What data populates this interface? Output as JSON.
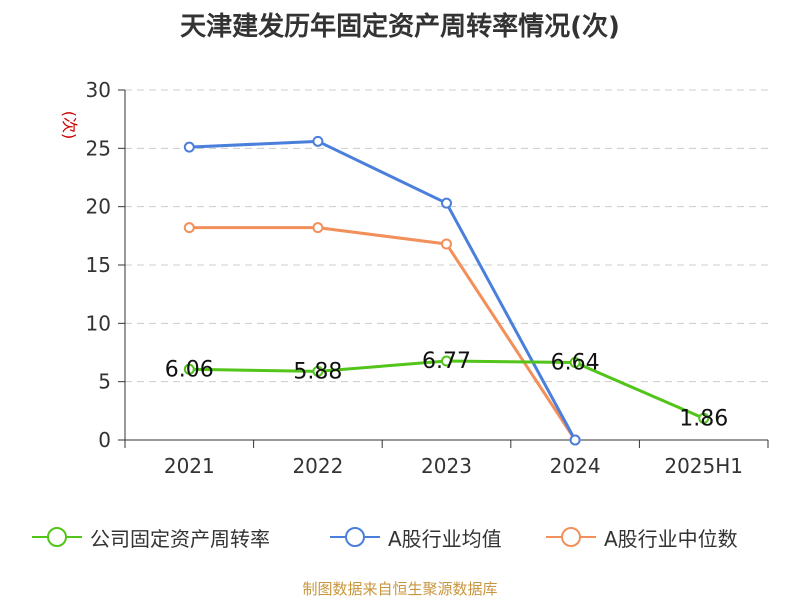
{
  "chart_data": {
    "type": "line",
    "title": "天津建发历年固定资产周转率情况(次)",
    "ylabel": "(次)",
    "categories": [
      "2021",
      "2022",
      "2023",
      "2024",
      "2025H1"
    ],
    "ylim": [
      0,
      30
    ],
    "yticks": [
      0,
      5,
      10,
      15,
      20,
      25,
      30
    ],
    "grid": true,
    "legend_position": "bottom",
    "series": [
      {
        "name": "公司固定资产周转率",
        "color": "#52c41a",
        "values": [
          6.06,
          5.88,
          6.77,
          6.64,
          1.86
        ],
        "labels": [
          "6.06",
          "5.88",
          "6.77",
          "6.64",
          "1.86"
        ]
      },
      {
        "name": "A股行业均值",
        "color": "#4a7fdc",
        "values": [
          25.1,
          25.6,
          20.3,
          0,
          null
        ]
      },
      {
        "name": "A股行业中位数",
        "color": "#f28f5a",
        "values": [
          18.2,
          18.2,
          16.8,
          0,
          null
        ]
      }
    ]
  },
  "source_note": "制图数据来自恒生聚源数据库",
  "colors": {
    "axis_label": "#cc0000",
    "source": "#c8963e",
    "grid": "#cccccc"
  }
}
